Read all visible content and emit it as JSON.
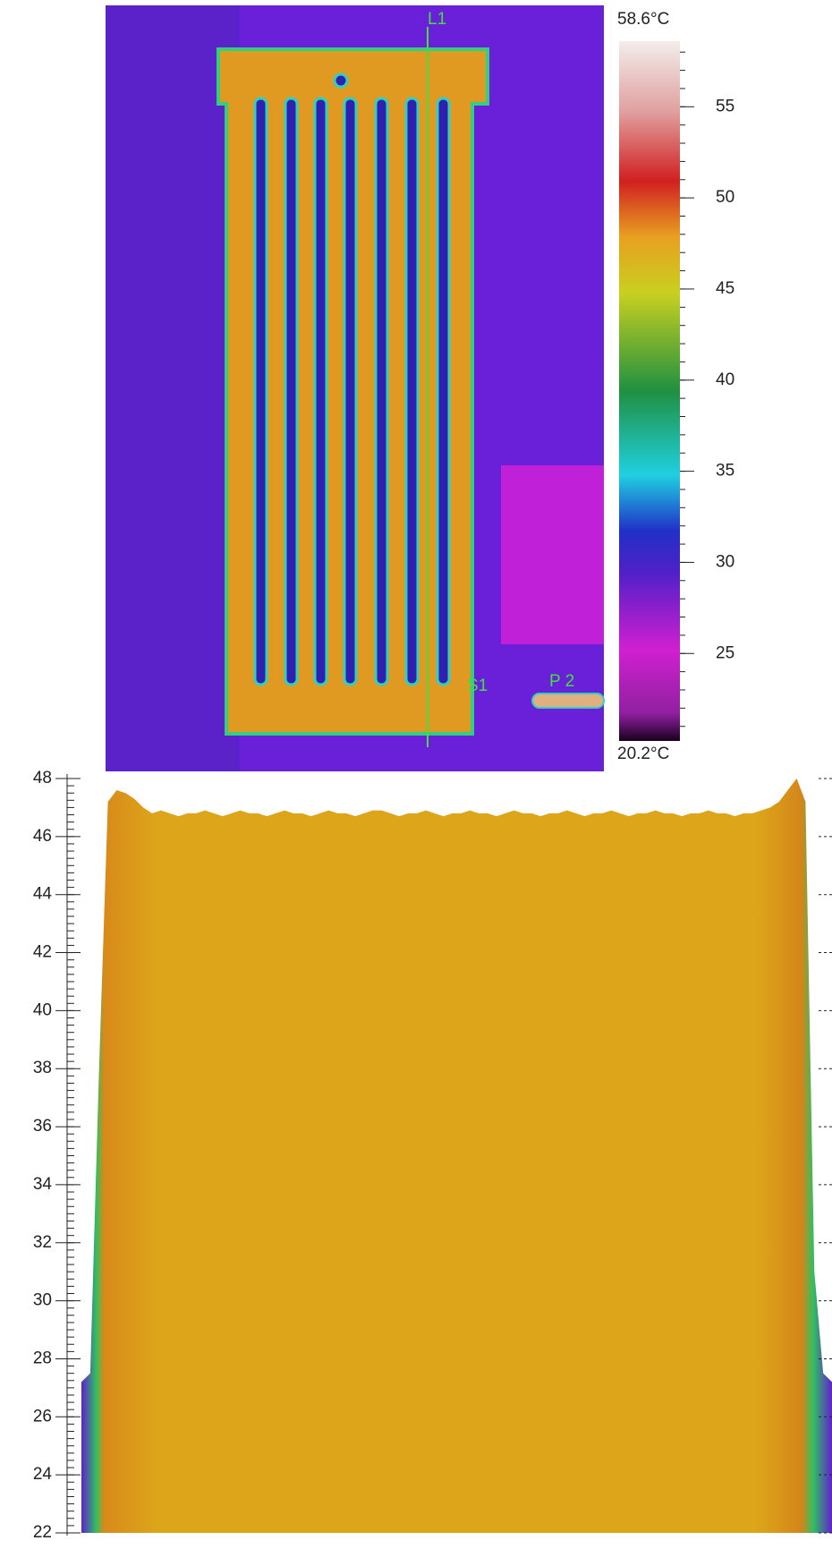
{
  "chart_data": [
    {
      "type": "colorbar",
      "max_label": "58.6°C",
      "min_label": "20.2°C",
      "ylim": [
        20.2,
        58.6
      ],
      "yticks": [
        25,
        30,
        35,
        40,
        45,
        50,
        55
      ],
      "image_labels": [
        "L1",
        "S1",
        "P 2"
      ]
    },
    {
      "type": "area",
      "color": "#dda51a",
      "ylim": [
        22,
        48
      ],
      "yticks": [
        22,
        24,
        26,
        28,
        30,
        32,
        34,
        36,
        38,
        40,
        42,
        44,
        46,
        48
      ],
      "values": [
        27.2,
        27.5,
        38,
        47.2,
        47.6,
        47.5,
        47.3,
        47.0,
        46.8,
        46.9,
        46.8,
        46.7,
        46.8,
        46.8,
        46.9,
        46.8,
        46.7,
        46.8,
        46.9,
        46.8,
        46.8,
        46.7,
        46.8,
        46.9,
        46.8,
        46.8,
        46.7,
        46.8,
        46.9,
        46.8,
        46.8,
        46.7,
        46.8,
        46.9,
        46.9,
        46.8,
        46.7,
        46.8,
        46.8,
        46.9,
        46.8,
        46.7,
        46.8,
        46.8,
        46.9,
        46.8,
        46.8,
        46.7,
        46.8,
        46.9,
        46.8,
        46.8,
        46.7,
        46.8,
        46.8,
        46.9,
        46.8,
        46.7,
        46.8,
        46.8,
        46.9,
        46.8,
        46.7,
        46.8,
        46.8,
        46.9,
        46.8,
        46.8,
        46.7,
        46.8,
        46.8,
        46.9,
        46.8,
        46.8,
        46.7,
        46.8,
        46.8,
        46.9,
        47.0,
        47.2,
        47.6,
        48.0,
        47.2,
        31,
        27.5,
        27.2
      ]
    }
  ]
}
